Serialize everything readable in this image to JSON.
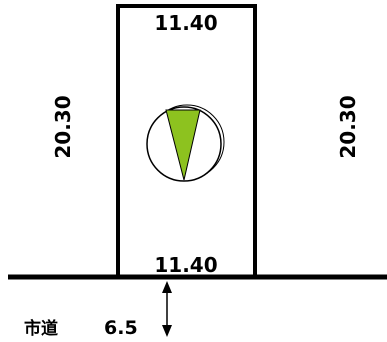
{
  "lot": {
    "top_width": "11.40",
    "bottom_width": "11.40",
    "left_depth": "20.30",
    "right_depth": "20.30"
  },
  "road": {
    "label": "市道",
    "width": "6.5"
  },
  "compass": {
    "icon": "north-arrow-icon",
    "fill_color": "#8dc21f"
  },
  "colors": {
    "lines": "#000000",
    "background": "#ffffff"
  }
}
